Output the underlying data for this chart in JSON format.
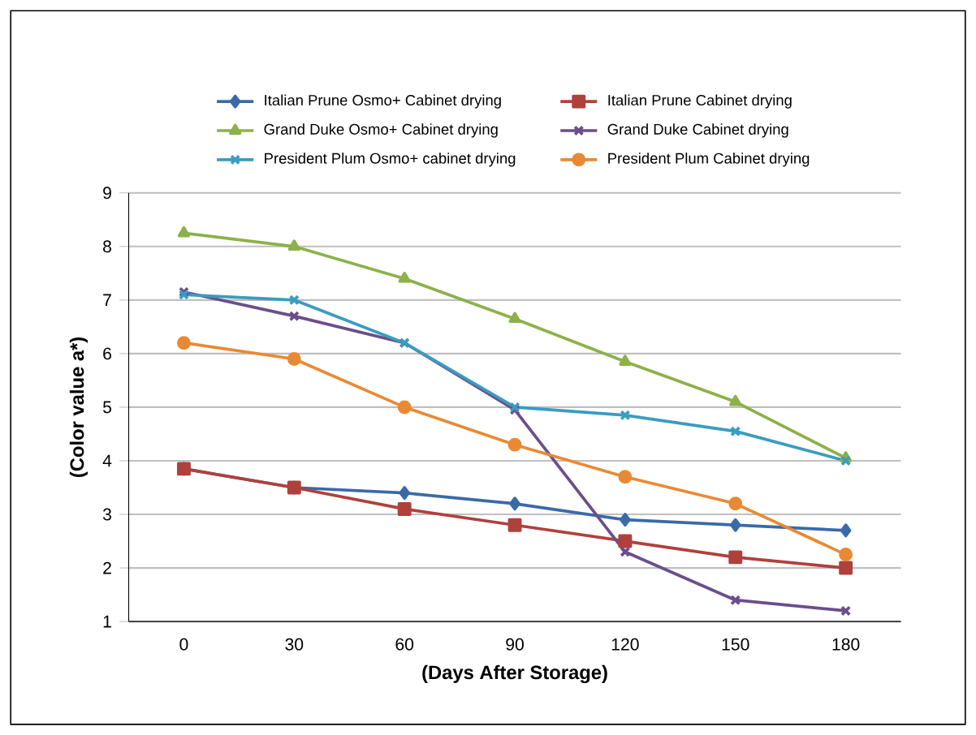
{
  "chart_data": {
    "type": "line",
    "xlabel": "(Days After Storage)",
    "ylabel": "(Color value a*)",
    "categories": [
      "0",
      "30",
      "60",
      "90",
      "120",
      "150",
      "180"
    ],
    "series": [
      {
        "name": "Italian Prune Osmo+ Cabinet drying",
        "color": "#3a6aa8",
        "marker": "diamond",
        "values": [
          3.85,
          3.5,
          3.4,
          3.2,
          2.9,
          2.8,
          2.7
        ]
      },
      {
        "name": "Italian Prune Cabinet drying",
        "color": "#b0403c",
        "marker": "square",
        "values": [
          3.85,
          3.5,
          3.1,
          2.8,
          2.5,
          2.2,
          2.0
        ]
      },
      {
        "name": "Grand Duke Osmo+ Cabinet drying",
        "color": "#8cb14a",
        "marker": "triangle",
        "values": [
          8.25,
          8.0,
          7.4,
          6.65,
          5.85,
          5.1,
          4.05
        ]
      },
      {
        "name": "Grand Duke Cabinet drying",
        "color": "#6a4e8c",
        "marker": "cross",
        "values": [
          7.15,
          6.7,
          6.2,
          4.95,
          2.3,
          1.4,
          1.2
        ]
      },
      {
        "name": "President Plum Osmo+ cabinet drying",
        "color": "#3a9cc0",
        "marker": "cross",
        "values": [
          7.1,
          7.0,
          6.2,
          5.0,
          4.85,
          4.55,
          4.0
        ]
      },
      {
        "name": "President Plum Cabinet drying",
        "color": "#e88a34",
        "marker": "circle",
        "values": [
          6.2,
          5.9,
          5.0,
          4.3,
          3.7,
          3.2,
          2.25
        ]
      }
    ],
    "ylim": [
      1,
      9
    ],
    "yticks": [
      1,
      2,
      3,
      4,
      5,
      6,
      7,
      8,
      9
    ],
    "grid": "y",
    "legend": "top",
    "line_style": "solid"
  }
}
